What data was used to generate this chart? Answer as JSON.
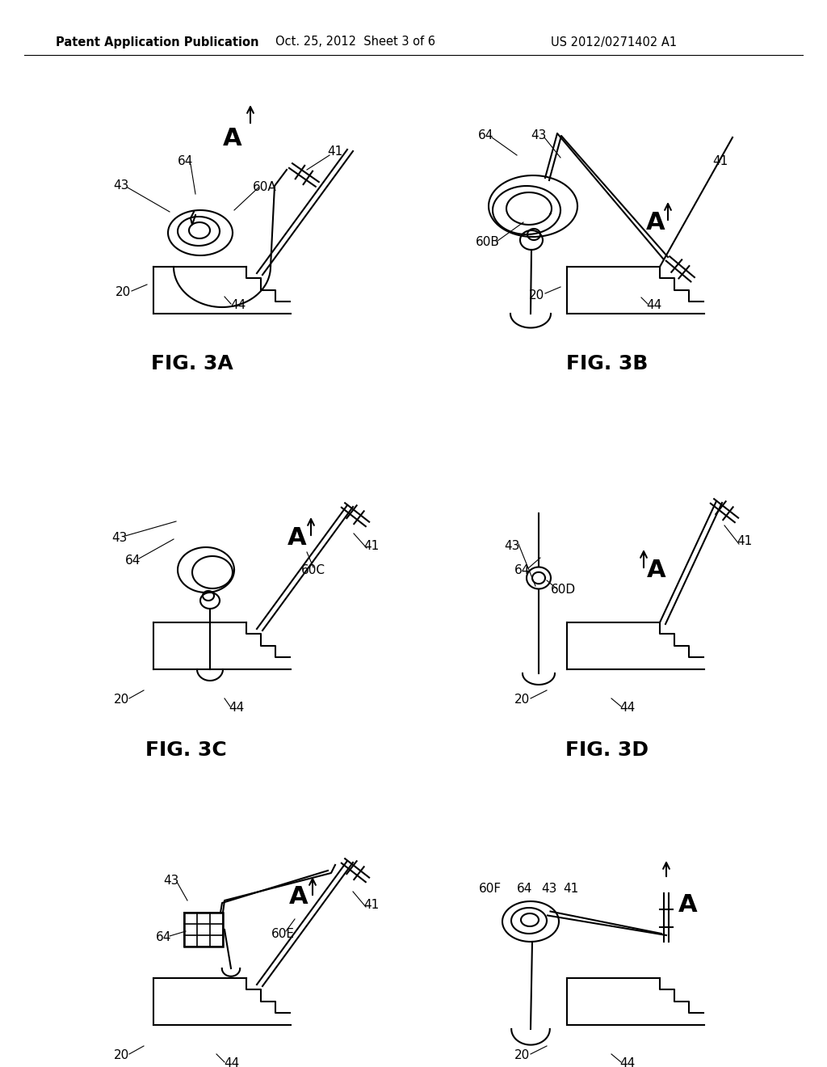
{
  "header_left": "Patent Application Publication",
  "header_center": "Oct. 25, 2012  Sheet 3 of 6",
  "header_right": "US 2012/0271402 A1",
  "bg_color": "#ffffff",
  "line_color": "#000000",
  "header_fontsize": 10.5,
  "fig_label_fontsize": 18,
  "annotation_fontsize": 11,
  "A_fontsize": 22,
  "lw": 1.5
}
